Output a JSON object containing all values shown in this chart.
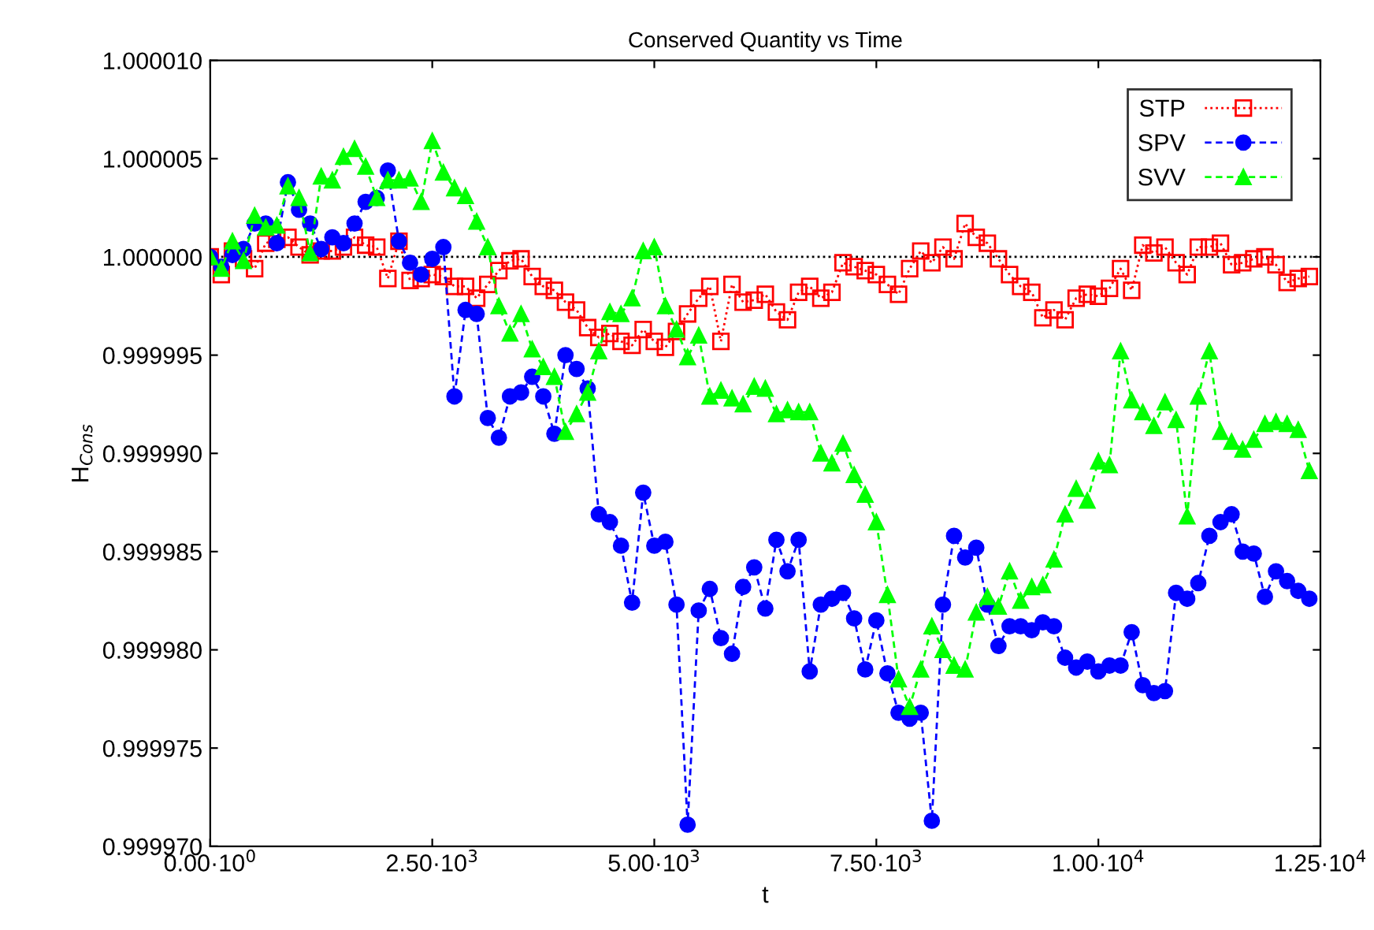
{
  "chart_data": {
    "type": "line",
    "title": "Conserved Quantity vs Time",
    "xlabel": "t",
    "ylabel": "H$_{Cons}$",
    "x": [
      0,
      125,
      250,
      375,
      500,
      625,
      750,
      875,
      1000,
      1125,
      1250,
      1375,
      1500,
      1625,
      1750,
      1875,
      2000,
      2125,
      2250,
      2375,
      2500,
      2625,
      2750,
      2875,
      3000,
      3125,
      3250,
      3375,
      3500,
      3625,
      3750,
      3875,
      4000,
      4125,
      4250,
      4375,
      4500,
      4625,
      4750,
      4875,
      5000,
      5125,
      5250,
      5375,
      5500,
      5625,
      5750,
      5875,
      6000,
      6125,
      6250,
      6375,
      6500,
      6625,
      6750,
      6875,
      7000,
      7125,
      7250,
      7375,
      7500,
      7625,
      7750,
      7875,
      8000,
      8125,
      8250,
      8375,
      8500,
      8625,
      8750,
      8875,
      9000,
      9125,
      9250,
      9375,
      9500,
      9625,
      9750,
      9875,
      10000,
      10125,
      10250,
      10375,
      10500,
      10625,
      10750,
      10875,
      11000,
      11125,
      11250,
      11375,
      11500,
      11625,
      11750,
      11875,
      12000,
      12125,
      12250,
      12375
    ],
    "series": [
      {
        "name": "STP",
        "color": "#ff0000",
        "marker": "square",
        "line_style": "dotted",
        "values": [
          1.0,
          0.9999991,
          1.0000003,
          0.9999999,
          0.9999994,
          1.0000007,
          1.0000009,
          1.000001,
          1.0000005,
          1.0000001,
          1.0000003,
          1.0000003,
          1.0000005,
          1.000001,
          1.0000006,
          1.0000005,
          0.9999989,
          1.0000008,
          0.9999988,
          0.9999989,
          0.9999991,
          0.999999,
          0.9999985,
          0.9999985,
          0.9999979,
          0.9999986,
          0.9999993,
          0.9999998,
          0.9999999,
          0.999999,
          0.9999985,
          0.9999983,
          0.9999977,
          0.9999973,
          0.9999964,
          0.9999959,
          0.9999961,
          0.9999957,
          0.9999955,
          0.9999963,
          0.9999957,
          0.9999954,
          0.9999962,
          0.9999971,
          0.9999979,
          0.9999985,
          0.9999957,
          0.9999986,
          0.9999977,
          0.9999978,
          0.9999981,
          0.9999972,
          0.9999968,
          0.9999982,
          0.9999985,
          0.9999979,
          0.9999982,
          0.9999997,
          0.9999995,
          0.9999993,
          0.9999991,
          0.9999986,
          0.9999981,
          0.9999994,
          1.0000003,
          0.9999997,
          1.0000005,
          0.9999999,
          1.0000017,
          1.000001,
          1.0000007,
          0.9999999,
          0.9999991,
          0.9999985,
          0.9999982,
          0.9999969,
          0.9999973,
          0.9999968,
          0.9999979,
          0.9999981,
          0.999998,
          0.9999984,
          0.9999994,
          0.9999983,
          1.0000006,
          1.0000002,
          1.0000005,
          0.9999997,
          0.9999991,
          1.0000005,
          1.0000005,
          1.0000007,
          0.9999996,
          0.9999997,
          0.9999999,
          1.0,
          0.9999996,
          0.9999987,
          0.9999989,
          0.999999
        ]
      },
      {
        "name": "SPV",
        "color": "#0000ff",
        "marker": "circle",
        "line_style": "dashed",
        "values": [
          1.0,
          0.9999995,
          1.0000001,
          1.0000004,
          1.0000017,
          1.0000017,
          1.0000007,
          1.0000038,
          1.0000024,
          1.0000017,
          1.0000004,
          1.000001,
          1.0000007,
          1.0000017,
          1.0000028,
          1.000003,
          1.0000044,
          1.0000008,
          0.9999997,
          0.9999991,
          0.9999999,
          1.0000005,
          0.9999929,
          0.9999973,
          0.9999971,
          0.9999918,
          0.9999908,
          0.9999929,
          0.9999931,
          0.9999939,
          0.9999929,
          0.999991,
          0.999995,
          0.9999943,
          0.9999933,
          0.9999869,
          0.9999865,
          0.9999853,
          0.9999824,
          0.999988,
          0.9999853,
          0.9999855,
          0.9999823,
          0.9999711,
          0.999982,
          0.9999831,
          0.9999806,
          0.9999798,
          0.9999832,
          0.9999842,
          0.9999821,
          0.9999856,
          0.999984,
          0.9999856,
          0.9999789,
          0.9999823,
          0.9999826,
          0.9999829,
          0.9999816,
          0.999979,
          0.9999815,
          0.9999788,
          0.9999768,
          0.9999765,
          0.9999768,
          0.9999713,
          0.9999823,
          0.9999858,
          0.9999847,
          0.9999852,
          0.9999823,
          0.9999802,
          0.9999812,
          0.9999812,
          0.999981,
          0.9999814,
          0.9999812,
          0.9999796,
          0.9999791,
          0.9999794,
          0.9999789,
          0.9999792,
          0.9999792,
          0.9999809,
          0.9999782,
          0.9999778,
          0.9999779,
          0.9999829,
          0.9999826,
          0.9999834,
          0.9999858,
          0.9999865,
          0.9999869,
          0.999985,
          0.9999849,
          0.9999827,
          0.999984,
          0.9999835,
          0.999983,
          0.9999826
        ]
      },
      {
        "name": "SVV",
        "color": "#00ff00",
        "marker": "triangle",
        "line_style": "dashed",
        "values": [
          1.0,
          0.9999994,
          1.0000008,
          0.9999998,
          1.0000021,
          1.0000015,
          1.0000016,
          1.0000036,
          1.000003,
          1.0000002,
          1.0000041,
          1.0000039,
          1.0000051,
          1.0000055,
          1.0000046,
          1.000003,
          1.0000039,
          1.0000039,
          1.000004,
          1.0000028,
          1.0000059,
          1.0000043,
          1.0000035,
          1.0000031,
          1.0000018,
          1.0000005,
          0.9999975,
          0.9999961,
          0.9999971,
          0.9999953,
          0.9999944,
          0.9999939,
          0.9999911,
          0.999992,
          0.9999931,
          0.9999952,
          0.9999972,
          0.9999971,
          0.9999979,
          1.0000003,
          1.0000005,
          0.9999975,
          0.9999963,
          0.9999949,
          0.999996,
          0.9999929,
          0.9999932,
          0.9999928,
          0.9999925,
          0.9999934,
          0.9999933,
          0.999992,
          0.9999922,
          0.9999921,
          0.9999921,
          0.99999,
          0.9999895,
          0.9999905,
          0.9999889,
          0.9999879,
          0.9999865,
          0.9999828,
          0.9999785,
          0.9999771,
          0.999979,
          0.9999812,
          0.99998,
          0.9999792,
          0.999979,
          0.9999819,
          0.9999827,
          0.9999822,
          0.999984,
          0.9999825,
          0.9999832,
          0.9999833,
          0.9999846,
          0.9999869,
          0.9999882,
          0.9999876,
          0.9999896,
          0.9999894,
          0.9999952,
          0.9999927,
          0.9999921,
          0.9999914,
          0.9999926,
          0.9999917,
          0.9999868,
          0.9999929,
          0.9999952,
          0.9999911,
          0.9999906,
          0.9999902,
          0.9999907,
          0.9999915,
          0.9999916,
          0.9999915,
          0.9999912,
          0.9999891
        ]
      }
    ],
    "xlim": [
      0,
      12500
    ],
    "xticks": [
      {
        "value": 0,
        "label": "0.00·10$^{0}$"
      },
      {
        "value": 2500,
        "label": "2.50·10$^{3}$"
      },
      {
        "value": 5000,
        "label": "5.00·10$^{3}$"
      },
      {
        "value": 7500,
        "label": "7.50·10$^{3}$"
      },
      {
        "value": 10000,
        "label": "1.00·10$^{4}$"
      },
      {
        "value": 12500,
        "label": "1.25·10$^{4}$"
      }
    ],
    "ylim": [
      0.99997,
      1.00001
    ],
    "yticks": [
      {
        "value": 0.99997,
        "label": "0.999970"
      },
      {
        "value": 0.999975,
        "label": "0.999975"
      },
      {
        "value": 0.99998,
        "label": "0.999980"
      },
      {
        "value": 0.999985,
        "label": "0.999985"
      },
      {
        "value": 0.99999,
        "label": "0.999990"
      },
      {
        "value": 0.999995,
        "label": "0.999995"
      },
      {
        "value": 1.0,
        "label": "1.000000"
      },
      {
        "value": 1.000005,
        "label": "1.000005"
      },
      {
        "value": 1.00001,
        "label": "1.000010"
      }
    ],
    "ref_lines": [
      {
        "axis": "y",
        "value": 1.0,
        "color": "#000000",
        "line_style": "dotted"
      }
    ],
    "grid": false,
    "legend": "top right"
  }
}
